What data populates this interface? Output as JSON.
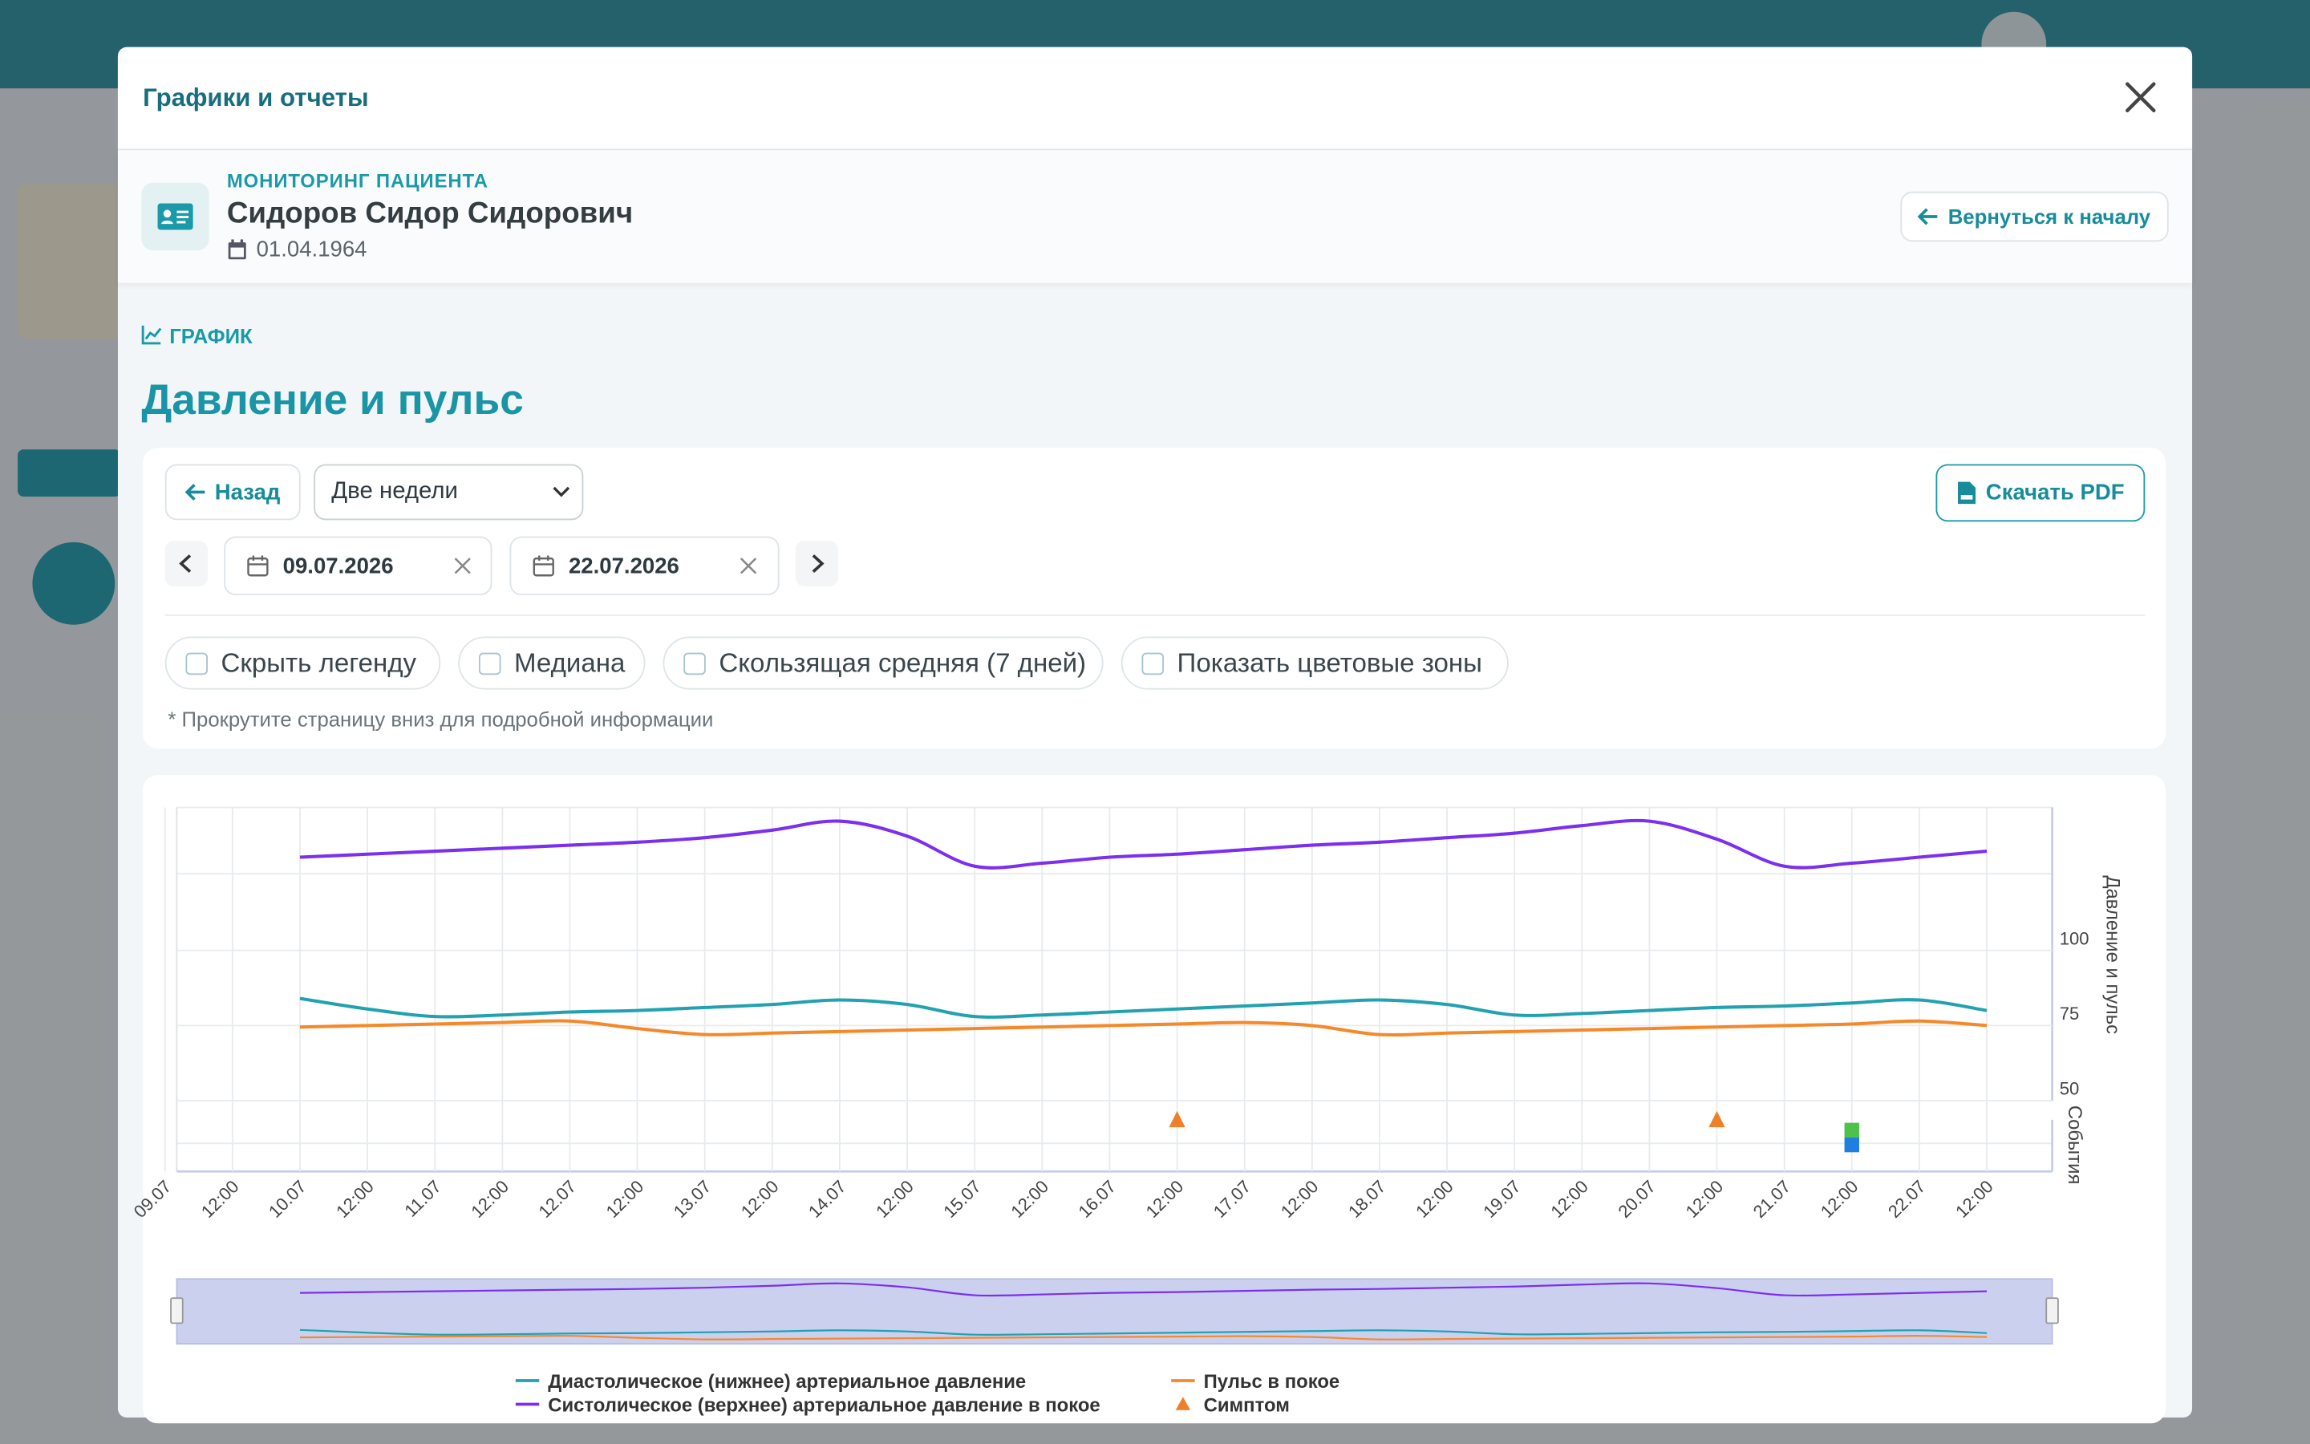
{
  "modal": {
    "title": "Графики и отчеты"
  },
  "patient": {
    "label": "МОНИТОРИНГ ПАЦИЕНТА",
    "name": "Сидоров Сидор Сидорович",
    "birth_date": "01.04.1964",
    "back_button": "Вернуться к началу"
  },
  "section": {
    "label": "ГРАФИК",
    "title": "Давление и пульс"
  },
  "controls": {
    "back": "Назад",
    "period": "Две недели",
    "date_from": "09.07.2026",
    "date_to": "22.07.2026",
    "download": "Скачать PDF",
    "toggles": [
      "Скрыть легенду",
      "Медиана",
      "Скользящая средняя (7 дней)",
      "Показать цветовые зоны"
    ],
    "note": "* Прокрутите страницу вниз для подробной информации"
  },
  "chart_data": {
    "type": "line",
    "ylabel": "Давление и пульс",
    "events_label": "События",
    "grid": true,
    "categories": [
      "09.07",
      "12:00",
      "10.07",
      "12:00",
      "11.07",
      "12:00",
      "12.07",
      "12:00",
      "13.07",
      "12:00",
      "14.07",
      "12:00",
      "15.07",
      "12:00",
      "16.07",
      "12:00",
      "17.07",
      "12:00",
      "18.07",
      "12:00",
      "19.07",
      "12:00",
      "20.07",
      "12:00",
      "21.07",
      "12:00",
      "22.07",
      "12:00"
    ],
    "ylim": [
      50,
      150
    ],
    "yticks": [
      50,
      75,
      100
    ],
    "series": [
      {
        "name": "Диастолическое (нижнее) артериальное давление",
        "color": "#22a2b0",
        "values": [
          null,
          null,
          84,
          80.5,
          78,
          78.5,
          79.5,
          80,
          81,
          82,
          83.5,
          82,
          78,
          78.5,
          79.5,
          80.5,
          81.5,
          82.5,
          83.5,
          82,
          78.5,
          79,
          80,
          81,
          81.5,
          82.5,
          83.5,
          80
        ]
      },
      {
        "name": "Пульс в покое",
        "color": "#f5892a",
        "values": [
          null,
          null,
          74.5,
          75,
          75.5,
          76,
          76.5,
          74,
          72,
          72.5,
          73,
          73.5,
          74,
          74.5,
          75,
          75.5,
          76,
          75,
          72,
          72.5,
          73,
          73.5,
          74,
          74.5,
          75,
          75.5,
          76.5,
          75
        ]
      },
      {
        "name": "Систолическое (верхнее) артериальное давление в покое",
        "color": "#7b2ff0",
        "values": [
          null,
          null,
          131,
          132,
          133,
          134,
          135,
          136,
          137.5,
          140,
          143,
          138,
          128,
          129,
          131,
          132,
          133.5,
          135,
          136,
          137.5,
          139,
          141.5,
          143,
          137,
          128,
          129,
          131,
          133
        ]
      }
    ],
    "events": [
      {
        "name": "Симптом",
        "color": "#f07f2a",
        "shape": "triangle",
        "x": [
          "16.07 12:00",
          "20.07 12:00"
        ]
      },
      {
        "color": "#4cc24c",
        "shape": "square",
        "x": [
          "21.07 12:00"
        ]
      },
      {
        "color": "#1e7fe0",
        "shape": "square",
        "x": [
          "21.07 12:00"
        ]
      }
    ]
  }
}
